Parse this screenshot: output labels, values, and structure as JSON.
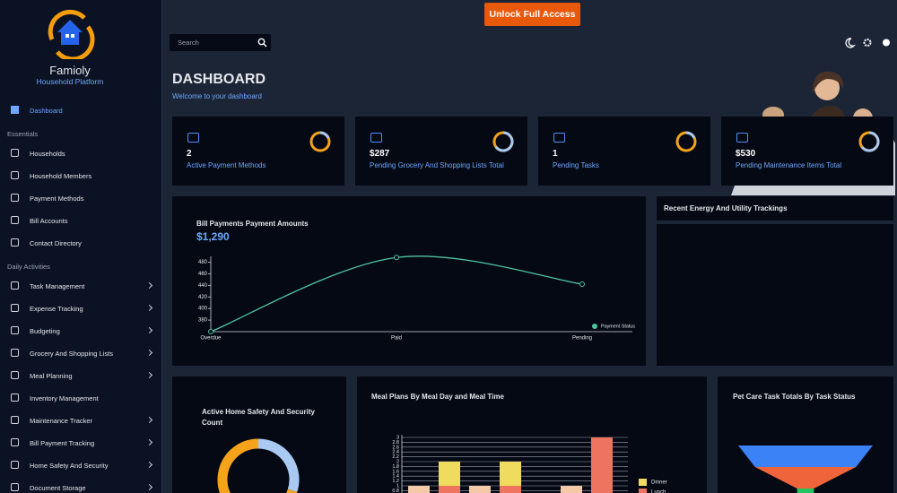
{
  "header": {
    "cta": "Unlock Full Access",
    "search_placeholder": "Search"
  },
  "sidebar": {
    "brand": "Famioly",
    "tagline": "Household Platform",
    "active": "Dashboard",
    "sections": [
      {
        "title": "Essentials",
        "items": [
          {
            "label": "Households",
            "expandable": false
          },
          {
            "label": "Household Members",
            "expandable": false
          },
          {
            "label": "Payment Methods",
            "expandable": false
          },
          {
            "label": "Bill Accounts",
            "expandable": false
          },
          {
            "label": "Contact Directory",
            "expandable": false
          }
        ]
      },
      {
        "title": "Daily Activities",
        "items": [
          {
            "label": "Task Management",
            "expandable": true
          },
          {
            "label": "Expense Tracking",
            "expandable": true
          },
          {
            "label": "Budgeting",
            "expandable": true
          },
          {
            "label": "Grocery And Shopping Lists",
            "expandable": true
          },
          {
            "label": "Meal Planning",
            "expandable": true
          },
          {
            "label": "Inventory Management",
            "expandable": false
          },
          {
            "label": "Maintenance Tracker",
            "expandable": true
          },
          {
            "label": "Bill Payment Tracking",
            "expandable": true
          },
          {
            "label": "Home Safety And Security",
            "expandable": true
          },
          {
            "label": "Document Storage",
            "expandable": true
          }
        ]
      }
    ]
  },
  "page": {
    "title": "DASHBOARD",
    "subtitle": "Welcome to your dashboard"
  },
  "stats": [
    {
      "value": "2",
      "label": "Active Payment Methods"
    },
    {
      "value": "$287",
      "label": "Pending Grocery And Shopping Lists Total"
    },
    {
      "value": "1",
      "label": "Pending Tasks"
    },
    {
      "value": "$530",
      "label": "Pending Maintenance Items Total"
    }
  ],
  "energy": {
    "title": "Recent Energy And Utility Trackings"
  },
  "chart_data": [
    {
      "type": "line",
      "title": "Bill Payments Payment Amounts",
      "total": "$1,290",
      "categories": [
        "Overdue",
        "Paid",
        "Pending"
      ],
      "series": [
        {
          "name": "Payment Status",
          "color": "#4fc3a1",
          "values": [
            360,
            488,
            442
          ]
        }
      ],
      "ylim": [
        360,
        490
      ],
      "yticks": [
        380,
        400,
        420,
        440,
        460,
        480
      ]
    },
    {
      "type": "donut",
      "title": "Active Home Safety And Security Count",
      "values": [
        30,
        70
      ],
      "colors": [
        "#a9c9f2",
        "#f5a31a"
      ]
    },
    {
      "type": "stacked_bar",
      "title": "Meal Plans By Meal Day and Meal Time",
      "categories": [
        null,
        null,
        null,
        null,
        null,
        null,
        null
      ],
      "series": [
        {
          "color": "#f3c9a8",
          "values": [
            1,
            0,
            1,
            0,
            0,
            1,
            0
          ]
        },
        {
          "name": "Lunch",
          "color": "#ef7460",
          "values": [
            0,
            1,
            0,
            1,
            0,
            0,
            3
          ]
        },
        {
          "name": "Dinner",
          "color": "#efdc5e",
          "values": [
            0,
            1,
            0,
            1,
            0,
            0,
            0
          ]
        }
      ],
      "ylim": [
        0,
        3.1
      ],
      "yticks": [
        0.8,
        1,
        1.2,
        1.4,
        1.6,
        1.8,
        2,
        2.2,
        2.4,
        2.6,
        2.8,
        3
      ]
    },
    {
      "type": "funnel",
      "title": "Pet Care Task Totals By Task Status",
      "values": [
        8,
        6,
        1
      ],
      "colors": [
        "#3b82f6",
        "#f0643c",
        "#22c55e"
      ]
    }
  ]
}
